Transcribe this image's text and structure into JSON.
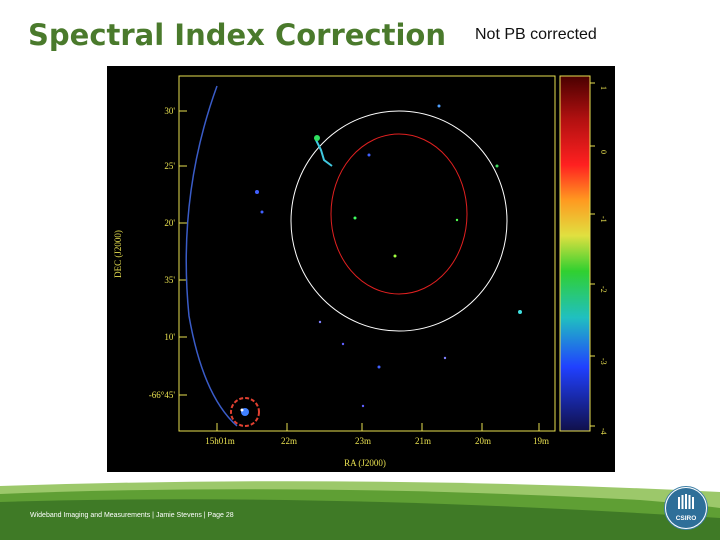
{
  "slide": {
    "title": "Spectral Index Correction",
    "subtitle": "Not PB corrected",
    "footer": "Wideband Imaging and Measurements  |  Jamie Stevens  |  Page 28",
    "logo_text": "CSIRO"
  },
  "figure": {
    "xlabel": "RA (J2000)",
    "ylabel": "DEC (J2000)",
    "ra_ticks": [
      "15h01m",
      "22m",
      "23m",
      "21m",
      "20m",
      "19m"
    ],
    "dec_ticks": [
      "30'",
      "25'",
      "20'",
      "35'",
      "10'",
      "-66°45'"
    ],
    "colorbar_ticks": [
      "1",
      "0",
      "-1",
      "-2",
      "-3",
      "-4"
    ],
    "colors": {
      "background": "#000000",
      "frame": "#e8e050",
      "circle_outer": "#ffffff",
      "circle_inner": "#e02020",
      "arc": "#3a5cc8"
    }
  },
  "colors": {
    "title": "#4a7a2c",
    "footer_green": "#6aa83a",
    "footer_dark": "#3f7a26",
    "logo_blue": "#2e6f99"
  }
}
